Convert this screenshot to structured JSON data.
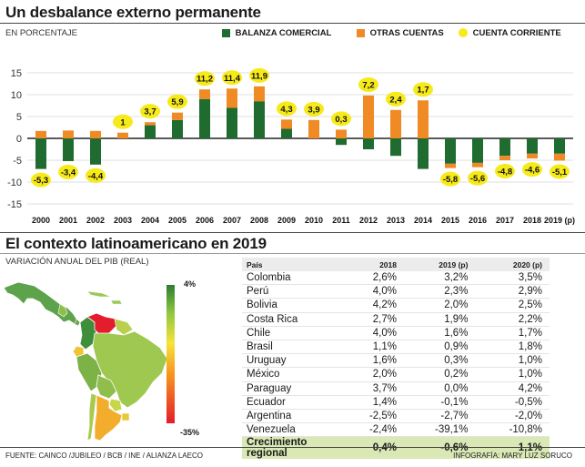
{
  "header": {
    "title": "Un desbalance externo permanente",
    "subtitle": "EN PORCENTAJE"
  },
  "legend": [
    {
      "label": "BALANZA COMERCIAL",
      "color": "#1f6b30",
      "shape": "square"
    },
    {
      "label": "OTRAS CUENTAS",
      "color": "#f08a24",
      "shape": "square"
    },
    {
      "label": "CUENTA CORRIENTE",
      "color": "#f7ea1a",
      "shape": "circle"
    }
  ],
  "chart_data": {
    "type": "bar",
    "categories": [
      "2000",
      "2001",
      "2002",
      "2003",
      "2004",
      "2005",
      "2006",
      "2007",
      "2008",
      "2009",
      "2010",
      "2011",
      "2012",
      "2013",
      "2014",
      "2015",
      "2016",
      "2017",
      "2018",
      "2019 (p)"
    ],
    "series": [
      {
        "name": "BALANZA COMERCIAL",
        "color": "#1f6b30",
        "values": [
          -7.0,
          -5.2,
          -6.0,
          0.0,
          3.0,
          4.2,
          9.0,
          7.0,
          8.5,
          2.2,
          0.0,
          -1.5,
          -2.5,
          -4.0,
          -7.0,
          -5.8,
          -5.6,
          -4.0,
          -3.5,
          -3.5
        ]
      },
      {
        "name": "OTRAS CUENTAS",
        "color": "#f08a24",
        "values": [
          1.7,
          1.8,
          1.7,
          1.3,
          0.7,
          1.7,
          2.2,
          4.4,
          3.4,
          2.1,
          4.2,
          2.0,
          9.8,
          6.5,
          8.7,
          -1.0,
          -1.0,
          -1.0,
          -1.1,
          -1.6
        ]
      },
      {
        "name": "CUENTA CORRIENTE",
        "color": "#f7ea1a",
        "values": [
          -5.3,
          -3.4,
          -4.4,
          1,
          3.7,
          5.9,
          11.2,
          11.4,
          11.9,
          4.3,
          3.9,
          0.3,
          7.2,
          2.4,
          1.7,
          -5.8,
          -5.6,
          -4.8,
          -4.6,
          -5.1
        ],
        "labels": [
          "-5,3",
          "-3,4",
          "-4,4",
          "1",
          "3,7",
          "5,9",
          "11,2",
          "11,4",
          "11,9",
          "4,3",
          "3,9",
          "0,3",
          "7,2",
          "2,4",
          "1,7",
          "-5,8",
          "-5,6",
          "-4,8",
          "-4,6",
          "-5,1"
        ]
      }
    ],
    "ylim": [
      -15,
      15
    ],
    "yticks": [
      "15",
      "10",
      "5",
      "0",
      "-5",
      "-10",
      "-15"
    ],
    "ytick_values": [
      15,
      10,
      5,
      0,
      -5,
      -10,
      -15
    ],
    "grid": true,
    "legend_position": "top-right"
  },
  "section2": {
    "title": "El contexto latinoamericano en 2019",
    "subtitle": "VARIACIÓN ANUAL DEL PIB (REAL)",
    "scale": {
      "max_label": "4%",
      "min_label": "-35%"
    }
  },
  "table": {
    "headers": [
      "País",
      "2018",
      "2019 (p)",
      "2020 (p)"
    ],
    "rows": [
      [
        "Colombia",
        "2,6%",
        "3,2%",
        "3,5%"
      ],
      [
        "Perú",
        "4,0%",
        "2,3%",
        "2,9%"
      ],
      [
        "Bolivia",
        "4,2%",
        "2,0%",
        "2,5%"
      ],
      [
        "Costa Rica",
        "2,7%",
        "1,9%",
        "2,2%"
      ],
      [
        "Chile",
        "4,0%",
        "1,6%",
        "1,7%"
      ],
      [
        "Brasil",
        "1,1%",
        "0,9%",
        "1,8%"
      ],
      [
        "Uruguay",
        "1,6%",
        "0,3%",
        "1,0%"
      ],
      [
        "México",
        "2,0%",
        "0,2%",
        "1,0%"
      ],
      [
        "Paraguay",
        "3,7%",
        "0,0%",
        "4,2%"
      ],
      [
        "Ecuador",
        "1,4%",
        "-0,1%",
        "-0,5%"
      ],
      [
        "Argentina",
        "-2,5%",
        "-2,7%",
        "-2,0%"
      ],
      [
        "Venezuela",
        "-2,4%",
        "-39,1%",
        "-10,8%"
      ]
    ],
    "total": [
      "Crecimiento regional",
      "0,4%",
      "-0,6%",
      "1,1%"
    ]
  },
  "footer": {
    "source": "FUENTE: CAINCO /JUBILEO / BCB / INE / ALIANZA LAECO",
    "credit": "INFOGRAFÍA: MARY LUZ SORUCO"
  }
}
